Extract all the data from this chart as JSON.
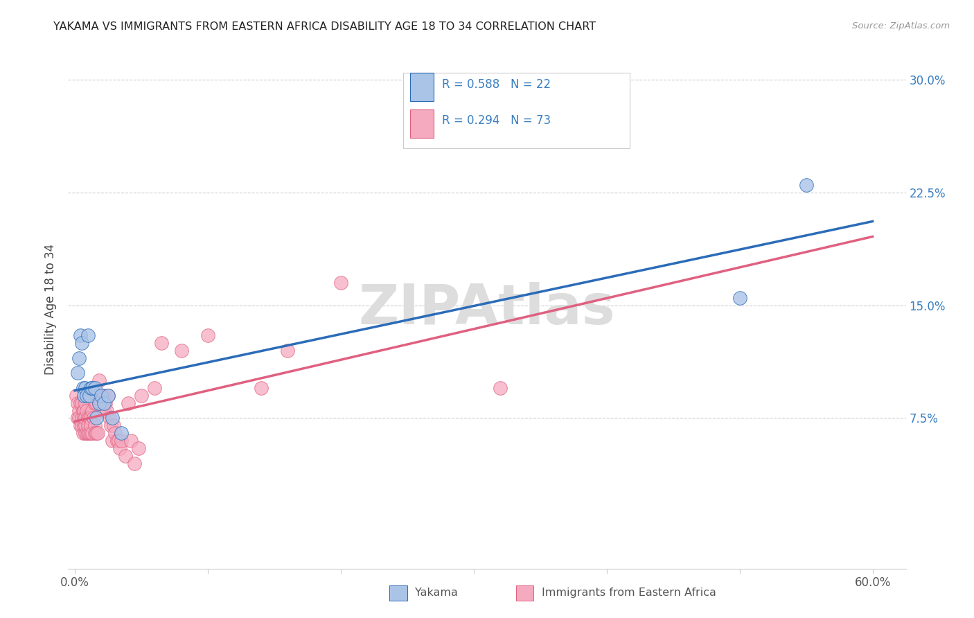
{
  "title": "YAKAMA VS IMMIGRANTS FROM EASTERN AFRICA DISABILITY AGE 18 TO 34 CORRELATION CHART",
  "source": "Source: ZipAtlas.com",
  "ylabel": "Disability Age 18 to 34",
  "xlim": [
    -0.005,
    0.625
  ],
  "ylim": [
    -0.025,
    0.32
  ],
  "x_tick_positions": [
    0.0,
    0.1,
    0.2,
    0.3,
    0.4,
    0.5,
    0.6
  ],
  "x_tick_labels": [
    "0.0%",
    "",
    "",
    "",
    "",
    "",
    "60.0%"
  ],
  "y_tick_positions": [
    0.075,
    0.15,
    0.225,
    0.3
  ],
  "y_tick_labels": [
    "7.5%",
    "15.0%",
    "22.5%",
    "30.0%"
  ],
  "series1_color": "#aac4e8",
  "series2_color": "#f5aac0",
  "line1_color": "#2b6cb8",
  "line2_color": "#e06080",
  "R1": 0.588,
  "N1": 22,
  "R2": 0.294,
  "N2": 73,
  "legend_labels": [
    "Yakama",
    "Immigrants from Eastern Africa"
  ],
  "watermark": "ZIPAtlas",
  "yakama_x": [
    0.002,
    0.003,
    0.004,
    0.005,
    0.006,
    0.007,
    0.008,
    0.009,
    0.01,
    0.011,
    0.012,
    0.013,
    0.015,
    0.016,
    0.018,
    0.02,
    0.022,
    0.025,
    0.028,
    0.035,
    0.5,
    0.55
  ],
  "yakama_y": [
    0.105,
    0.115,
    0.13,
    0.125,
    0.095,
    0.09,
    0.095,
    0.09,
    0.13,
    0.09,
    0.095,
    0.095,
    0.095,
    0.075,
    0.085,
    0.09,
    0.085,
    0.09,
    0.075,
    0.065,
    0.155,
    0.23
  ],
  "africa_x": [
    0.001,
    0.002,
    0.002,
    0.003,
    0.003,
    0.004,
    0.004,
    0.005,
    0.005,
    0.005,
    0.006,
    0.006,
    0.007,
    0.007,
    0.007,
    0.008,
    0.008,
    0.008,
    0.008,
    0.009,
    0.009,
    0.01,
    0.01,
    0.01,
    0.011,
    0.011,
    0.012,
    0.012,
    0.012,
    0.013,
    0.013,
    0.014,
    0.014,
    0.015,
    0.015,
    0.015,
    0.016,
    0.016,
    0.017,
    0.018,
    0.018,
    0.019,
    0.02,
    0.02,
    0.021,
    0.022,
    0.022,
    0.023,
    0.024,
    0.025,
    0.026,
    0.027,
    0.028,
    0.029,
    0.03,
    0.032,
    0.033,
    0.034,
    0.035,
    0.038,
    0.04,
    0.042,
    0.045,
    0.048,
    0.05,
    0.06,
    0.065,
    0.08,
    0.1,
    0.14,
    0.16,
    0.2,
    0.32
  ],
  "africa_y": [
    0.09,
    0.085,
    0.075,
    0.08,
    0.075,
    0.085,
    0.07,
    0.085,
    0.075,
    0.07,
    0.08,
    0.065,
    0.08,
    0.07,
    0.075,
    0.085,
    0.065,
    0.07,
    0.075,
    0.065,
    0.08,
    0.075,
    0.065,
    0.07,
    0.075,
    0.065,
    0.075,
    0.065,
    0.07,
    0.08,
    0.065,
    0.09,
    0.075,
    0.07,
    0.065,
    0.085,
    0.065,
    0.085,
    0.065,
    0.1,
    0.085,
    0.09,
    0.09,
    0.085,
    0.09,
    0.09,
    0.08,
    0.085,
    0.08,
    0.09,
    0.075,
    0.07,
    0.06,
    0.07,
    0.065,
    0.06,
    0.06,
    0.055,
    0.06,
    0.05,
    0.085,
    0.06,
    0.045,
    0.055,
    0.09,
    0.095,
    0.125,
    0.12,
    0.13,
    0.095,
    0.12,
    0.165,
    0.095
  ]
}
